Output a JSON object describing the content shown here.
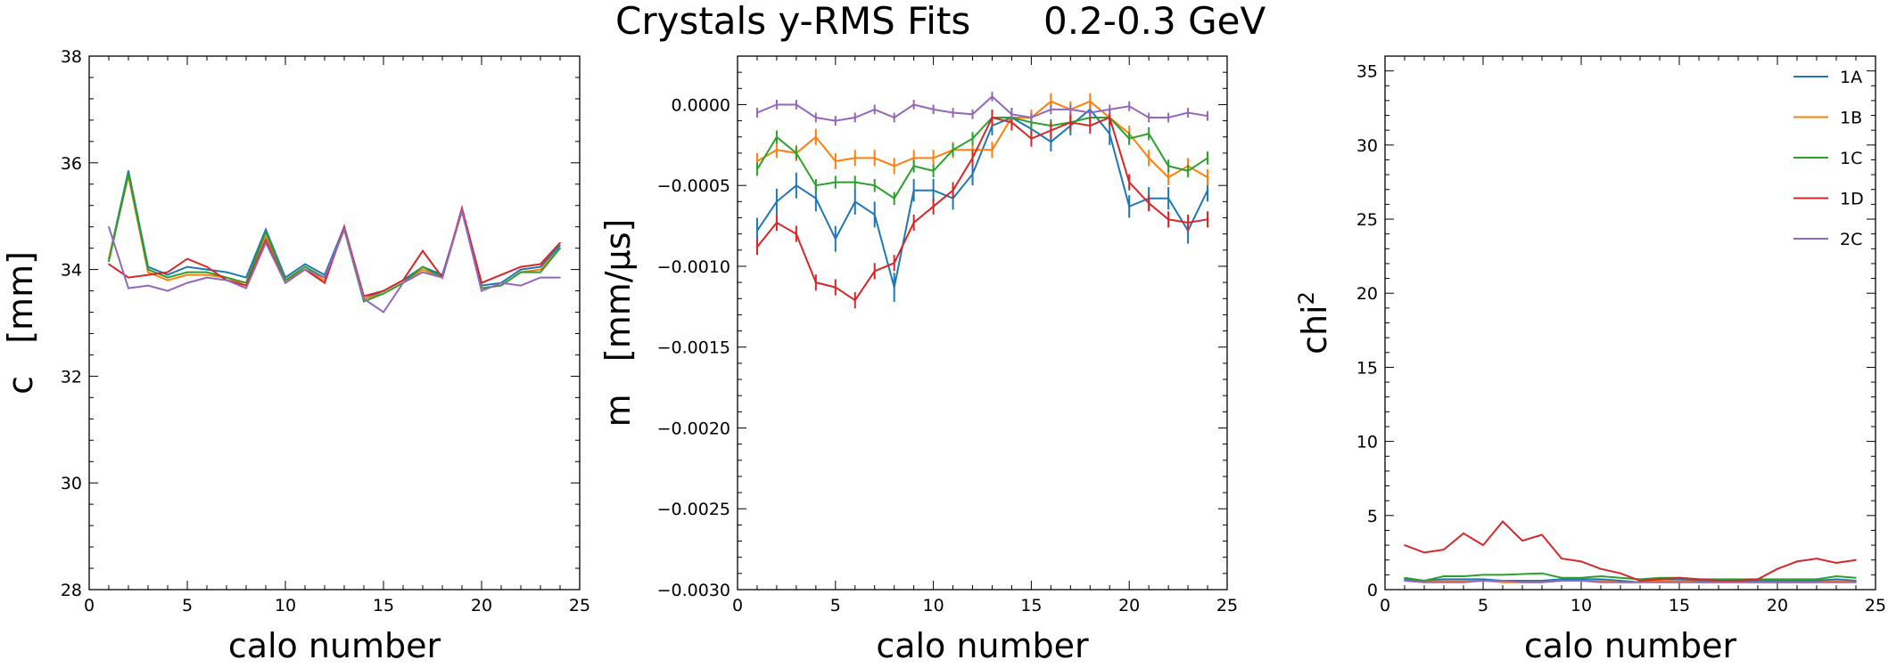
{
  "figure": {
    "title_left": "Crystals y-RMS Fits",
    "title_right": "0.2-0.3 GeV"
  },
  "colors": {
    "1A": "#1f77b4",
    "1B": "#ff7f0e",
    "1C": "#2ca02c",
    "1D": "#d62728",
    "2C": "#9467bd"
  },
  "chart_data": [
    {
      "type": "line",
      "xlabel": "calo number",
      "ylabel_main": "c",
      "ylabel_unit": "[mm]",
      "xlim": [
        0,
        25
      ],
      "ylim": [
        28,
        38
      ],
      "xticks": [
        0,
        5,
        10,
        15,
        20,
        25
      ],
      "yticks": [
        28,
        30,
        32,
        34,
        36,
        38
      ],
      "ytick_labels": [
        "28",
        "30",
        "32",
        "34",
        "36",
        "38"
      ],
      "error_bars": false,
      "x": [
        1,
        2,
        3,
        4,
        5,
        6,
        7,
        8,
        9,
        10,
        11,
        12,
        13,
        14,
        15,
        16,
        17,
        18,
        19,
        20,
        21,
        22,
        23,
        24
      ],
      "series": [
        {
          "name": "1A",
          "values": [
            34.2,
            35.85,
            34.05,
            33.9,
            34.05,
            34.0,
            33.95,
            33.85,
            34.75,
            33.85,
            34.1,
            33.9,
            34.8,
            33.45,
            33.6,
            33.8,
            34.05,
            33.9,
            35.1,
            33.7,
            33.75,
            34.0,
            34.05,
            34.45
          ]
        },
        {
          "name": "1B",
          "values": [
            34.2,
            35.75,
            33.95,
            33.8,
            33.9,
            33.9,
            33.85,
            33.7,
            34.6,
            33.8,
            34.0,
            33.8,
            34.75,
            33.45,
            33.55,
            33.75,
            34.0,
            33.85,
            35.1,
            33.65,
            33.7,
            33.95,
            34.0,
            34.4
          ]
        },
        {
          "name": "1C",
          "values": [
            34.15,
            35.8,
            34.0,
            33.85,
            33.95,
            33.95,
            33.85,
            33.75,
            34.7,
            33.8,
            34.05,
            33.85,
            34.75,
            33.4,
            33.55,
            33.75,
            34.05,
            33.85,
            35.1,
            33.65,
            33.7,
            33.95,
            33.95,
            34.4
          ]
        },
        {
          "name": "1D",
          "values": [
            34.1,
            33.85,
            33.9,
            33.95,
            34.2,
            34.05,
            33.8,
            33.7,
            34.55,
            33.75,
            34.0,
            33.75,
            34.8,
            33.5,
            33.6,
            33.8,
            34.35,
            33.85,
            35.15,
            33.75,
            33.9,
            34.05,
            34.1,
            34.5
          ]
        },
        {
          "name": "2C",
          "values": [
            34.8,
            33.65,
            33.7,
            33.6,
            33.75,
            33.85,
            33.8,
            33.65,
            34.5,
            33.75,
            34.0,
            33.85,
            34.75,
            33.45,
            33.2,
            33.75,
            33.95,
            33.85,
            35.1,
            33.6,
            33.75,
            33.7,
            33.85,
            33.85
          ]
        }
      ]
    },
    {
      "type": "line",
      "xlabel": "calo number",
      "ylabel_main": "m",
      "ylabel_unit": "[mm/µs]",
      "xlim": [
        0,
        25
      ],
      "ylim": [
        -0.003,
        0.0003
      ],
      "xticks": [
        0,
        5,
        10,
        15,
        20,
        25
      ],
      "yticks": [
        -0.003,
        -0.0025,
        -0.002,
        -0.0015,
        -0.001,
        -0.0005,
        0.0
      ],
      "ytick_labels": [
        "−0.0030",
        "−0.0025",
        "−0.0020",
        "−0.0015",
        "−0.0010",
        "−0.0005",
        "0.0000"
      ],
      "error_bars": true,
      "x": [
        1,
        2,
        3,
        4,
        5,
        6,
        7,
        8,
        9,
        10,
        11,
        12,
        13,
        14,
        15,
        16,
        17,
        18,
        19,
        20,
        21,
        22,
        23,
        24
      ],
      "series": [
        {
          "name": "1A",
          "values": [
            -0.00078,
            -0.0006,
            -0.0005,
            -0.00058,
            -0.00083,
            -0.0006,
            -0.00068,
            -0.00113,
            -0.00053,
            -0.00053,
            -0.00058,
            -0.00043,
            -0.00013,
            -8e-05,
            -0.00015,
            -0.00023,
            -0.00013,
            -3e-05,
            -0.00018,
            -0.00063,
            -0.00058,
            -0.00058,
            -0.00078,
            -0.00053
          ],
          "errors": [
            8e-05,
            8e-05,
            8e-05,
            8e-05,
            8e-05,
            8e-05,
            8e-05,
            9e-05,
            7e-05,
            7e-05,
            7e-05,
            7e-05,
            6e-05,
            6e-05,
            6e-05,
            6e-05,
            6e-05,
            6e-05,
            7e-05,
            7e-05,
            7e-05,
            7e-05,
            8e-05,
            7e-05
          ]
        },
        {
          "name": "1B",
          "values": [
            -0.00035,
            -0.00028,
            -0.0003,
            -0.0002,
            -0.00035,
            -0.00033,
            -0.00033,
            -0.00038,
            -0.00033,
            -0.00033,
            -0.00028,
            -0.00028,
            -0.00028,
            -8e-05,
            -8e-05,
            2e-05,
            -3e-05,
            2e-05,
            -8e-05,
            -0.00018,
            -0.00033,
            -0.00045,
            -0.00038,
            -0.00045
          ],
          "errors": [
            5e-05,
            5e-05,
            5e-05,
            5e-05,
            5e-05,
            5e-05,
            5e-05,
            5e-05,
            5e-05,
            5e-05,
            5e-05,
            5e-05,
            5e-05,
            5e-05,
            5e-05,
            5e-05,
            5e-05,
            5e-05,
            5e-05,
            5e-05,
            5e-05,
            5e-05,
            5e-05,
            5e-05
          ]
        },
        {
          "name": "1C",
          "values": [
            -0.0004,
            -0.0002,
            -0.0003,
            -0.0005,
            -0.00048,
            -0.00048,
            -0.0005,
            -0.00058,
            -0.00038,
            -0.00041,
            -0.00028,
            -0.00021,
            -8e-05,
            -8e-05,
            -0.00011,
            -0.00013,
            -0.00011,
            -8e-05,
            -8e-05,
            -0.00021,
            -0.00018,
            -0.00038,
            -0.00041,
            -0.00033
          ],
          "errors": [
            4e-05,
            4e-05,
            4e-05,
            4e-05,
            4e-05,
            4e-05,
            4e-05,
            4e-05,
            4e-05,
            4e-05,
            4e-05,
            4e-05,
            4e-05,
            4e-05,
            4e-05,
            4e-05,
            4e-05,
            4e-05,
            4e-05,
            4e-05,
            4e-05,
            4e-05,
            4e-05,
            4e-05
          ]
        },
        {
          "name": "1D",
          "values": [
            -0.00088,
            -0.00073,
            -0.0008,
            -0.0011,
            -0.00113,
            -0.00121,
            -0.00103,
            -0.00098,
            -0.00073,
            -0.00063,
            -0.00053,
            -0.00033,
            -8e-05,
            -0.00011,
            -0.00021,
            -0.00016,
            -0.00011,
            -0.00013,
            -8e-05,
            -0.00048,
            -0.00061,
            -0.00071,
            -0.00073,
            -0.00071
          ],
          "errors": [
            5e-05,
            5e-05,
            5e-05,
            5e-05,
            5e-05,
            5e-05,
            5e-05,
            5e-05,
            5e-05,
            5e-05,
            5e-05,
            5e-05,
            5e-05,
            5e-05,
            5e-05,
            5e-05,
            5e-05,
            5e-05,
            5e-05,
            5e-05,
            5e-05,
            5e-05,
            5e-05,
            5e-05
          ]
        },
        {
          "name": "2C",
          "values": [
            -5e-05,
            0.0,
            0.0,
            -8e-05,
            -0.0001,
            -8e-05,
            -3e-05,
            -8e-05,
            0.0,
            -3e-05,
            -5e-05,
            -6e-05,
            5e-05,
            -6e-05,
            -8e-05,
            -3e-05,
            -3e-05,
            -5e-05,
            -3e-05,
            -1e-05,
            -8e-05,
            -8e-05,
            -5e-05,
            -7e-05
          ],
          "errors": [
            3e-05,
            3e-05,
            3e-05,
            3e-05,
            3e-05,
            3e-05,
            3e-05,
            3e-05,
            3e-05,
            3e-05,
            3e-05,
            3e-05,
            3e-05,
            3e-05,
            3e-05,
            3e-05,
            3e-05,
            3e-05,
            3e-05,
            3e-05,
            3e-05,
            3e-05,
            3e-05,
            3e-05
          ]
        }
      ]
    },
    {
      "type": "line",
      "xlabel": "calo number",
      "ylabel_main": "chi",
      "ylabel_sup": "2",
      "xlim": [
        0,
        25
      ],
      "ylim": [
        0,
        36
      ],
      "xticks": [
        0,
        5,
        10,
        15,
        20,
        25
      ],
      "yticks": [
        0,
        5,
        10,
        15,
        20,
        25,
        30,
        35
      ],
      "ytick_labels": [
        "0",
        "5",
        "10",
        "15",
        "20",
        "25",
        "30",
        "35"
      ],
      "error_bars": false,
      "legend_position": "top-right",
      "x": [
        1,
        2,
        3,
        4,
        5,
        6,
        7,
        8,
        9,
        10,
        11,
        12,
        13,
        14,
        15,
        16,
        17,
        18,
        19,
        20,
        21,
        22,
        23,
        24
      ],
      "series": [
        {
          "name": "1A",
          "values": [
            0.7,
            0.6,
            0.7,
            0.7,
            0.7,
            0.6,
            0.6,
            0.6,
            0.7,
            0.7,
            0.7,
            0.6,
            0.5,
            0.6,
            0.7,
            0.6,
            0.6,
            0.6,
            0.6,
            0.6,
            0.6,
            0.6,
            0.7,
            0.6
          ]
        },
        {
          "name": "1B",
          "values": [
            0.6,
            0.5,
            0.6,
            0.6,
            0.6,
            0.5,
            0.5,
            0.5,
            0.6,
            0.6,
            0.6,
            0.5,
            0.5,
            0.6,
            0.6,
            0.5,
            0.5,
            0.5,
            0.5,
            0.5,
            0.5,
            0.5,
            0.6,
            0.5
          ]
        },
        {
          "name": "1C",
          "values": [
            0.8,
            0.6,
            0.9,
            0.9,
            1.0,
            1.0,
            1.05,
            1.1,
            0.8,
            0.8,
            0.9,
            0.8,
            0.7,
            0.8,
            0.8,
            0.7,
            0.7,
            0.7,
            0.7,
            0.7,
            0.7,
            0.7,
            0.9,
            0.8
          ]
        },
        {
          "name": "1D",
          "values": [
            3.0,
            2.5,
            2.7,
            3.8,
            3.0,
            4.6,
            3.3,
            3.7,
            2.1,
            1.9,
            1.4,
            1.1,
            0.6,
            0.7,
            0.8,
            0.7,
            0.6,
            0.6,
            0.7,
            1.4,
            1.9,
            2.1,
            1.8,
            2.0
          ]
        },
        {
          "name": "2C",
          "values": [
            0.6,
            0.5,
            0.5,
            0.5,
            0.6,
            0.6,
            0.5,
            0.5,
            0.6,
            0.6,
            0.5,
            0.5,
            0.5,
            0.5,
            0.5,
            0.5,
            0.5,
            0.5,
            0.5,
            0.5,
            0.5,
            0.5,
            0.5,
            0.5
          ]
        }
      ]
    }
  ]
}
